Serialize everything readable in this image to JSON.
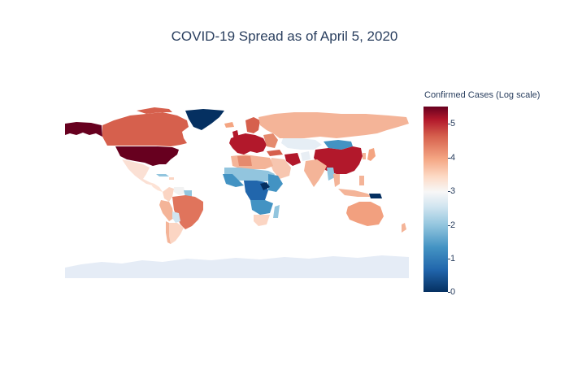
{
  "title": "COVID-19 Spread as of April 5, 2020",
  "colorbar": {
    "title": "Confirmed Cases (Log scale)",
    "ticks": [
      "0",
      "1",
      "2",
      "3",
      "4",
      "5"
    ],
    "range": [
      0,
      5.5
    ],
    "colorscale": "RdBu_r"
  },
  "map": {
    "projection": "equirectangular",
    "land_empty_color": "#e5ecf6",
    "regions": [
      {
        "name": "United States",
        "log_cases": 5.5,
        "color": "#67001f"
      },
      {
        "name": "Alaska",
        "log_cases": 5.5,
        "color": "#67001f"
      },
      {
        "name": "Canada",
        "log_cases": 4.2,
        "color": "#d6604d"
      },
      {
        "name": "Greenland",
        "log_cases": 0.3,
        "color": "#053061"
      },
      {
        "name": "Mexico",
        "log_cases": 3.2,
        "color": "#fbe0d4"
      },
      {
        "name": "Brazil",
        "log_cases": 4.0,
        "color": "#e0745c"
      },
      {
        "name": "Russia",
        "log_cases": 3.7,
        "color": "#f4b498"
      },
      {
        "name": "China",
        "log_cases": 4.9,
        "color": "#b2182b"
      },
      {
        "name": "Europe",
        "log_cases": 5.0,
        "color": "#b2182b"
      },
      {
        "name": "Australia",
        "log_cases": 3.8,
        "color": "#f2a07f"
      },
      {
        "name": "Africa",
        "log_cases": 1.0,
        "color": "#4393c3"
      }
    ]
  }
}
